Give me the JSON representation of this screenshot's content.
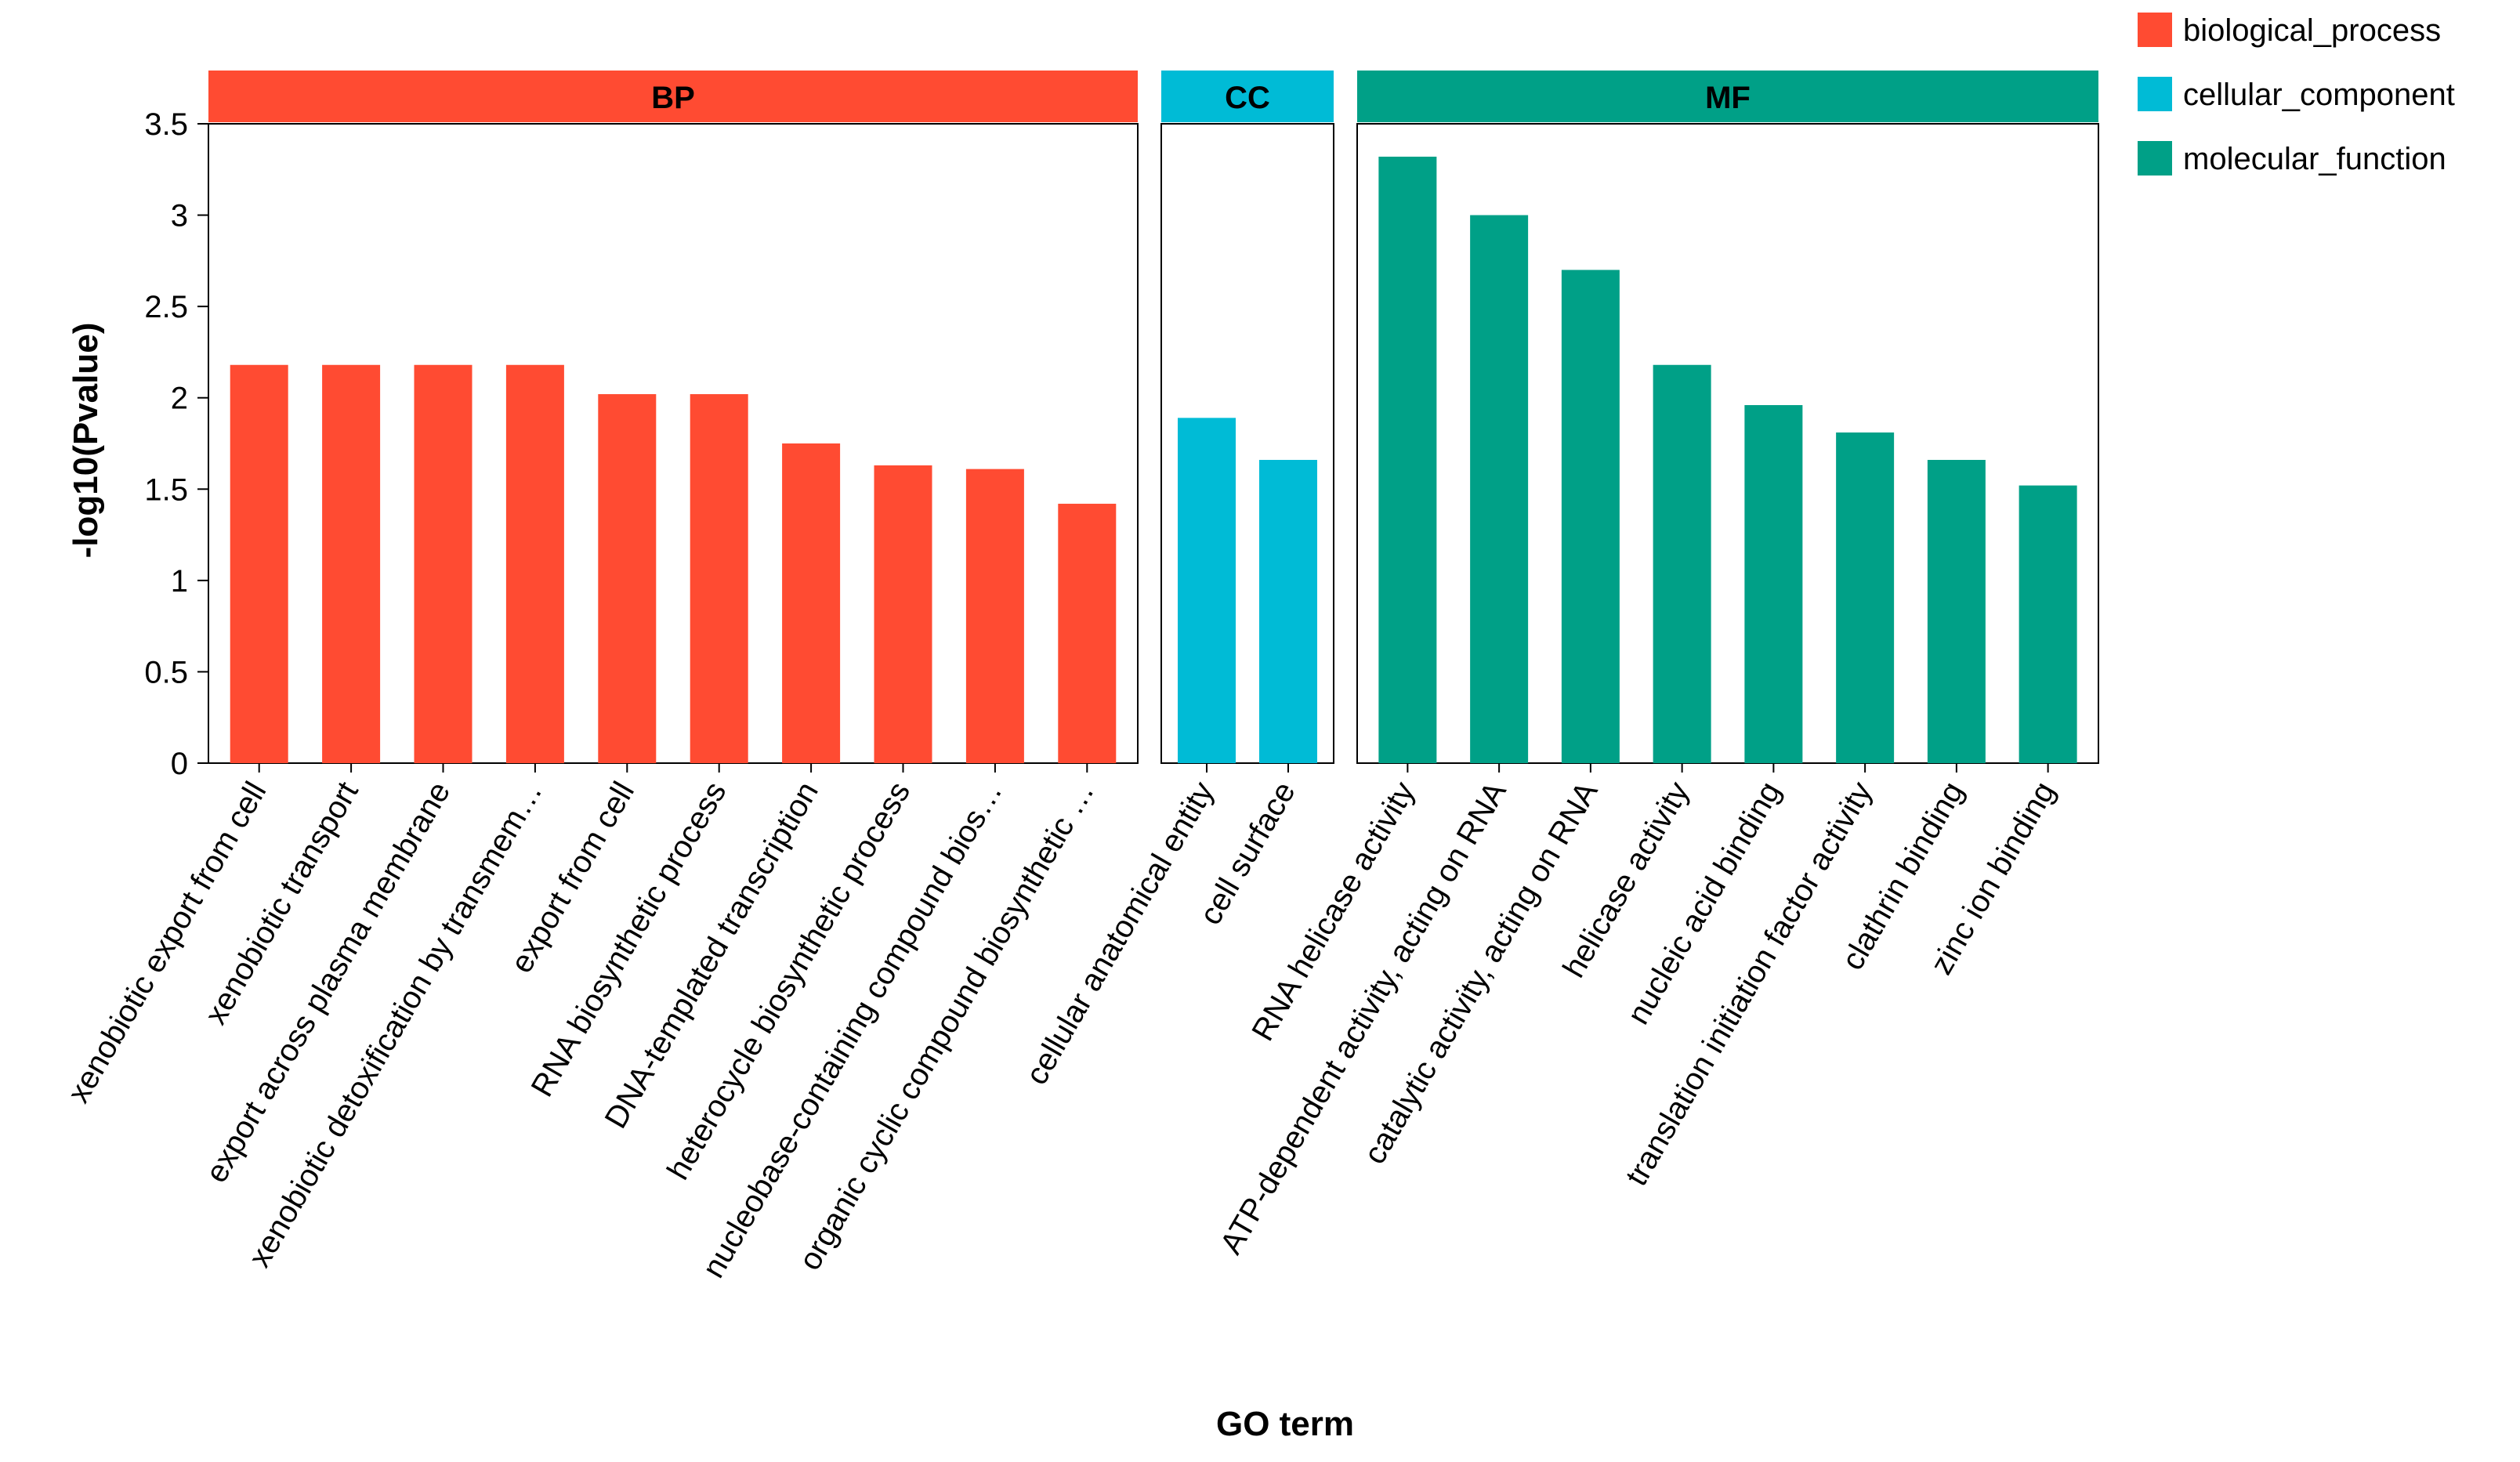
{
  "chart_data": {
    "type": "bar",
    "xlabel": "GO term",
    "ylabel": "-log10(Pvalue)",
    "ylim": [
      0,
      3.5
    ],
    "yticks": [
      "0",
      "0.5",
      "1",
      "1.5",
      "2",
      "2.5",
      "3",
      "3.5"
    ],
    "legend_position": "top-right",
    "panels": [
      {
        "name": "BP",
        "series_name": "biological_process",
        "color": "#FF4B32",
        "categories": [
          "xenobiotic export from cell",
          "xenobiotic transport",
          "export across plasma membrane",
          "xenobiotic detoxification by transmem…",
          "export from cell",
          "RNA biosynthetic process",
          "DNA-templated transcription",
          "heterocycle biosynthetic process",
          "nucleobase-containing compound bios…",
          "organic cyclic compound biosynthetic …"
        ],
        "values": [
          2.18,
          2.18,
          2.18,
          2.18,
          2.02,
          2.02,
          1.75,
          1.63,
          1.61,
          1.42
        ]
      },
      {
        "name": "CC",
        "series_name": "cellular_component",
        "color": "#00BBD6",
        "categories": [
          "cellular anatomical entity",
          "cell surface"
        ],
        "values": [
          1.89,
          1.66
        ]
      },
      {
        "name": "MF",
        "series_name": "molecular_function",
        "color": "#00A087",
        "categories": [
          "RNA helicase activity",
          "ATP-dependent activity, acting on RNA",
          "catalytic activity, acting on RNA",
          "helicase activity",
          "nucleic acid binding",
          "translation initiation factor activity",
          "clathrin binding",
          "zinc ion binding"
        ],
        "values": [
          3.32,
          3.0,
          2.7,
          2.18,
          1.96,
          1.81,
          1.66,
          1.52
        ]
      }
    ]
  }
}
